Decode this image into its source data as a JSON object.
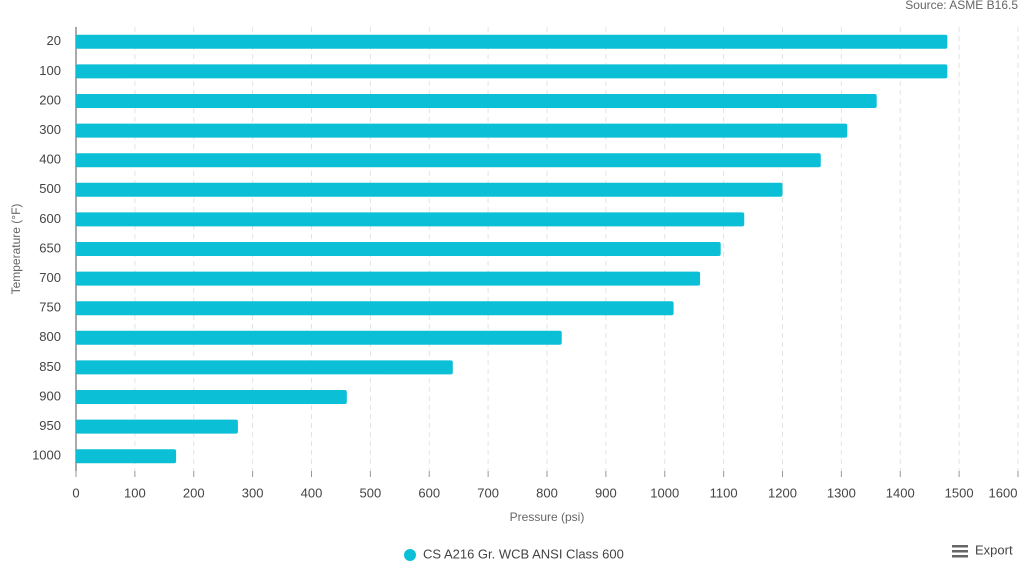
{
  "chart_data": {
    "type": "bar",
    "orientation": "horizontal",
    "source": "Source: ASME B16.5",
    "x_label": "Pressure (psi)",
    "y_label": "Temperature (°F)",
    "categories": [
      "20",
      "100",
      "200",
      "300",
      "400",
      "500",
      "600",
      "650",
      "700",
      "750",
      "800",
      "850",
      "900",
      "950",
      "1000"
    ],
    "series": [
      {
        "name": "CS A216 Gr. WCB ANSI Class 600",
        "color": "#0bbfd6",
        "values": [
          1480,
          1480,
          1360,
          1310,
          1265,
          1200,
          1135,
          1095,
          1060,
          1015,
          825,
          640,
          460,
          275,
          170
        ]
      }
    ],
    "xlim": [
      0,
      1600
    ],
    "xticks": [
      0,
      100,
      200,
      300,
      400,
      500,
      600,
      700,
      800,
      900,
      1000,
      1100,
      1200,
      1300,
      1400,
      1500,
      1600
    ],
    "grid": true,
    "legend": "bottom"
  },
  "ui": {
    "export": "Export"
  }
}
